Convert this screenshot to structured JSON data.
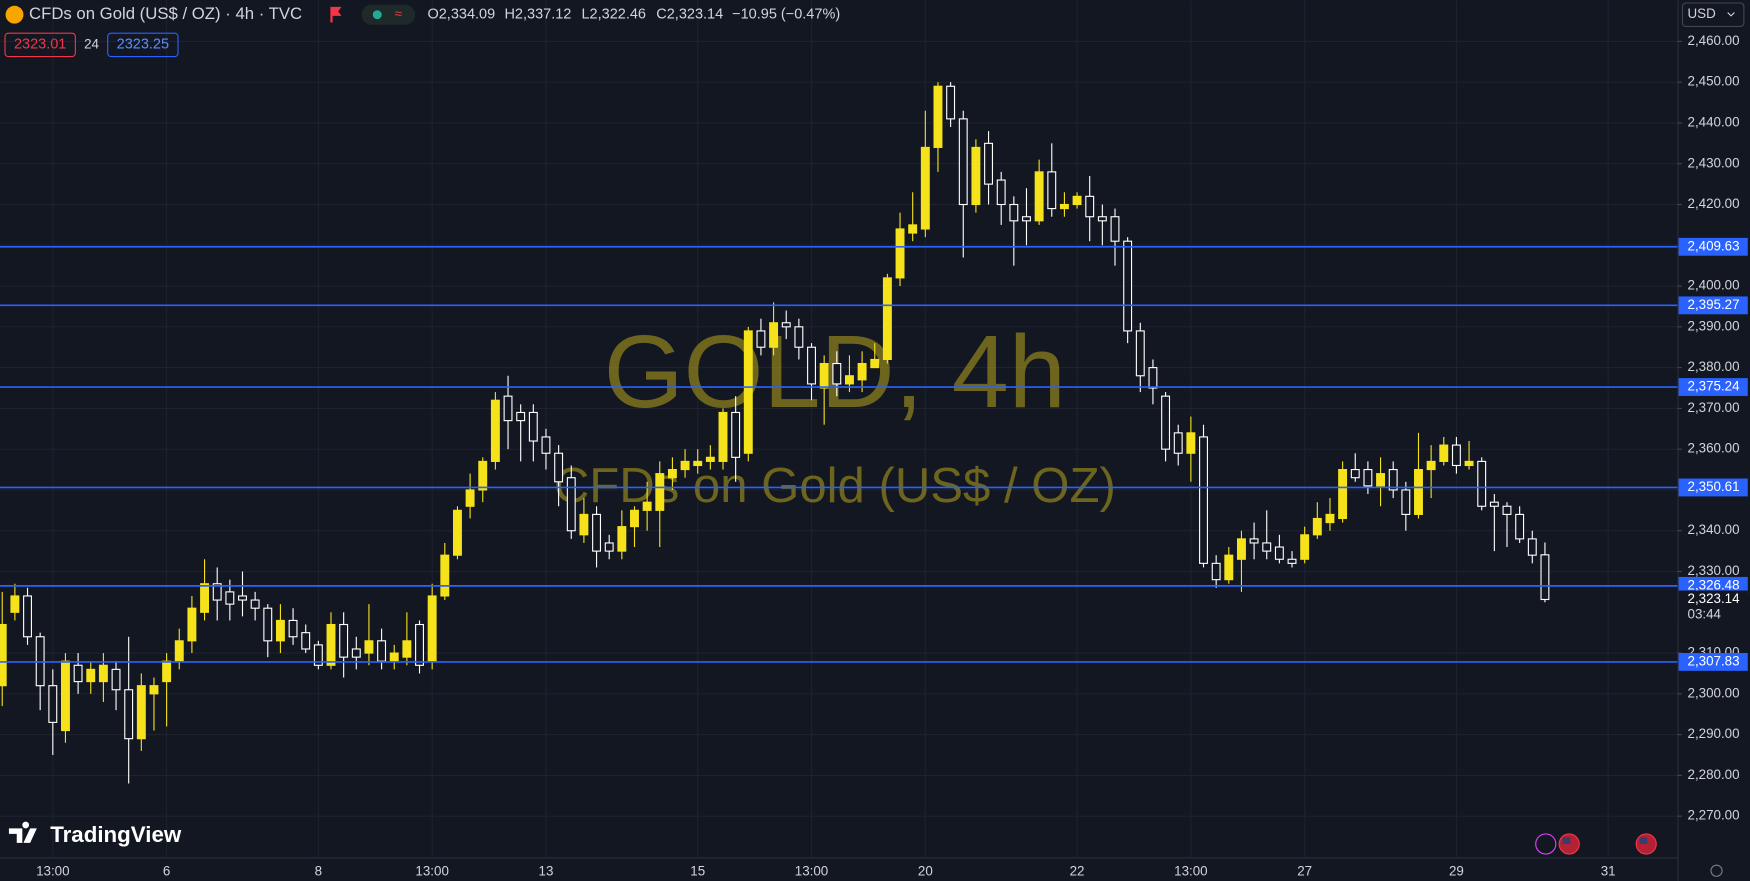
{
  "header": {
    "title": "CFDs on Gold (US$ / OZ) · 4h · TVC",
    "ohlc": [
      "O2,334.09",
      "H2,337.12",
      "L2,322.46",
      "C2,323.14"
    ],
    "change": "−10.95 (−0.47%)",
    "bid": "2323.01",
    "spread": "24",
    "ask": "2323.25"
  },
  "currency": "USD",
  "watermark": {
    "line1": "GOLD, 4h",
    "line2": "CFDs on Gold (US$ / OZ)"
  },
  "brand": "TradingView",
  "chart_data": {
    "type": "candlestick",
    "up_color": "#f5e21b",
    "down_color": "#ffffff",
    "hline_color": "#2962ff",
    "grid": true,
    "categories": [
      null,
      null,
      null,
      null,
      "13:00",
      null,
      null,
      null,
      null,
      null,
      null,
      null,
      null,
      "6",
      null,
      null,
      null,
      null,
      null,
      null,
      null,
      null,
      null,
      null,
      null,
      "8",
      null,
      null,
      null,
      null,
      null,
      null,
      null,
      null,
      "13:00",
      null,
      null,
      null,
      null,
      null,
      null,
      null,
      null,
      "13",
      null,
      null,
      null,
      null,
      null,
      null,
      null,
      null,
      null,
      null,
      null,
      "15",
      null,
      null,
      null,
      null,
      null,
      null,
      null,
      null,
      "13:00",
      null,
      null,
      null,
      null,
      null,
      null,
      null,
      null,
      "20",
      null,
      null,
      null,
      null,
      null,
      null,
      null,
      null,
      null,
      null,
      null,
      "22",
      null,
      null,
      null,
      null,
      null,
      null,
      null,
      null,
      "13:00",
      null,
      null,
      null,
      null,
      null,
      null,
      null,
      null,
      "27",
      null,
      null,
      null,
      null,
      null,
      null,
      null,
      null,
      null,
      null,
      null,
      "29",
      null,
      null,
      null,
      null,
      null,
      null,
      null,
      null,
      null,
      null,
      null,
      "31"
    ],
    "open": [
      2302,
      2320,
      2324,
      2314,
      2302,
      2291,
      2307,
      2303,
      2303,
      2306,
      2301,
      2289,
      2300,
      2303,
      2308,
      2313,
      2320,
      2327,
      2325,
      2324,
      2323,
      2321,
      2313,
      2318,
      2315,
      2312,
      2307,
      2317,
      2311,
      2310,
      2313,
      2308,
      2309,
      2317,
      2308,
      2324,
      2334,
      2346,
      2350,
      2357,
      2373,
      2369,
      2369,
      2363,
      2359,
      2353,
      2339,
      2344,
      2337,
      2335,
      2341,
      2345,
      2345,
      2353,
      2355,
      2356,
      2357,
      2357,
      2369,
      2359,
      2389,
      2385,
      2391,
      2390,
      2385,
      2375,
      2381,
      2376,
      2377,
      2380,
      2382,
      2402,
      2413,
      2414,
      2434,
      2449,
      2441,
      2420,
      2435,
      2426,
      2420,
      2417,
      2416,
      2428,
      2419,
      2420,
      2422,
      2417,
      2417,
      2411,
      2389,
      2380,
      2373,
      2364,
      2359,
      2363,
      2332,
      2328,
      2333,
      2338,
      2337,
      2336,
      2333,
      2333,
      2339,
      2342,
      2343,
      2355,
      2355,
      2351,
      2355,
      2350,
      2344,
      2355,
      2357,
      2361,
      2356,
      2357,
      2347,
      2346,
      2344,
      2338,
      2334.09,
      null,
      null,
      null,
      null,
      null
    ],
    "high": [
      2325,
      2327,
      2326,
      2315,
      2306,
      2310,
      2310,
      2308,
      2310,
      2308,
      2314,
      2305,
      2304,
      2310,
      2316,
      2324,
      2333,
      2331,
      2328,
      2330,
      2325,
      2322,
      2322,
      2321,
      2317,
      2313,
      2320,
      2320,
      2314,
      2322,
      2316,
      2312,
      2320,
      2318,
      2327,
      2337,
      2346,
      2354,
      2358,
      2374,
      2378,
      2371,
      2371,
      2365,
      2361,
      2356,
      2348,
      2346,
      2339,
      2345,
      2346,
      2352,
      2357,
      2358,
      2360,
      2360,
      2361,
      2370,
      2373,
      2390,
      2392,
      2396,
      2394,
      2392,
      2386,
      2383,
      2384,
      2383,
      2384,
      2386,
      2403,
      2418,
      2423,
      2443,
      2450,
      2450,
      2443,
      2436,
      2438,
      2428,
      2422,
      2424,
      2431,
      2435,
      2423,
      2423,
      2427,
      2420,
      2419,
      2412,
      2391,
      2382,
      2374,
      2366,
      2368,
      2366,
      2334,
      2336,
      2340,
      2342,
      2345,
      2339,
      2335,
      2341,
      2347,
      2348,
      2357,
      2359,
      2357,
      2358,
      2357,
      2352,
      2364,
      2361,
      2363,
      2363,
      2362,
      2358,
      2349,
      2347,
      2346,
      2340,
      2337.12,
      null,
      null,
      null,
      null,
      null
    ],
    "low": [
      2297,
      2318,
      2312,
      2296,
      2285,
      2288,
      2300,
      2300,
      2298,
      2296,
      2278,
      2286,
      2291,
      2292,
      2306,
      2310,
      2318,
      2318,
      2318,
      2319,
      2318,
      2309,
      2310,
      2312,
      2310,
      2306,
      2306,
      2304,
      2306,
      2307,
      2306,
      2306,
      2307,
      2305,
      2306,
      2323,
      2333,
      2343,
      2347,
      2355,
      2360,
      2357,
      2357,
      2355,
      2346,
      2338,
      2337,
      2331,
      2333,
      2333,
      2336,
      2340,
      2336,
      2350,
      2353,
      2354,
      2355,
      2355,
      2352,
      2357,
      2383,
      2383,
      2387,
      2382,
      2372,
      2366,
      2373,
      2374,
      2374,
      2380,
      2381,
      2400,
      2411,
      2412,
      2428,
      2439,
      2407,
      2418,
      2420,
      2415,
      2405,
      2410,
      2415,
      2417,
      2417,
      2419,
      2411,
      2410,
      2405,
      2386,
      2374,
      2371,
      2357,
      2356,
      2352,
      2331,
      2326,
      2327,
      2325,
      2333,
      2333,
      2332,
      2331,
      2332,
      2338,
      2340,
      2342,
      2352,
      2349,
      2346,
      2348,
      2340,
      2343,
      2348,
      2356,
      2354,
      2355,
      2345,
      2335,
      2336,
      2337,
      2332,
      2322.46,
      null,
      null,
      null,
      null,
      null
    ],
    "close": [
      2317,
      2324,
      2314,
      2302,
      2293,
      2308,
      2303,
      2306,
      2307,
      2301,
      2289,
      2302,
      2302,
      2308,
      2313,
      2321,
      2327,
      2323,
      2322,
      2323,
      2321,
      2313,
      2318,
      2314,
      2311,
      2307,
      2317,
      2309,
      2309,
      2313,
      2308,
      2310,
      2313,
      2307,
      2324,
      2334,
      2345,
      2350,
      2357,
      2372,
      2367,
      2367,
      2362,
      2359,
      2352,
      2340,
      2344,
      2335,
      2335,
      2341,
      2345,
      2347,
      2354,
      2355,
      2357,
      2357,
      2358,
      2369,
      2358,
      2389,
      2385,
      2391,
      2390,
      2385,
      2376,
      2381,
      2376,
      2378,
      2381,
      2382,
      2402,
      2414,
      2415,
      2434,
      2449,
      2441,
      2420,
      2434,
      2425,
      2420,
      2416,
      2416,
      2428,
      2419,
      2420,
      2422,
      2417,
      2416,
      2411,
      2389,
      2378,
      2375,
      2360,
      2359,
      2364,
      2332,
      2328,
      2334,
      2338,
      2337,
      2335,
      2333,
      2332,
      2339,
      2343,
      2344,
      2355,
      2353,
      2351,
      2354,
      2350,
      2344,
      2355,
      2357,
      2361,
      2356,
      2357,
      2346,
      2346,
      2344,
      2338,
      2334,
      2323.14,
      null,
      null,
      null,
      null,
      null
    ],
    "hlines": [
      {
        "value": 2409.63,
        "label": "2,409.63"
      },
      {
        "value": 2395.27,
        "label": "2,395.27"
      },
      {
        "value": 2375.24,
        "label": "2,375.24"
      },
      {
        "value": 2350.61,
        "label": "2,350.61"
      },
      {
        "value": 2326.48,
        "label": "2,326.48"
      },
      {
        "value": 2307.83,
        "label": "2,307.83"
      }
    ],
    "last_price": {
      "value": 2323.14,
      "label": "2,323.14"
    },
    "countdown": "03:44",
    "ylim": [
      2259.9,
      2470.1
    ],
    "yticks": [
      {
        "value": 2270,
        "label": "2,270.00"
      },
      {
        "value": 2280,
        "label": "2,280.00"
      },
      {
        "value": 2290,
        "label": "2,290.00"
      },
      {
        "value": 2300,
        "label": "2,300.00"
      },
      {
        "value": 2310,
        "label": "2,310.00"
      },
      {
        "value": 2330,
        "label": "2,330.00"
      },
      {
        "value": 2340,
        "label": "2,340.00"
      },
      {
        "value": 2350,
        "label": "2,350.00"
      },
      {
        "value": 2360,
        "label": "2,360.00"
      },
      {
        "value": 2370,
        "label": "2,370.00"
      },
      {
        "value": 2380,
        "label": "2,380.00"
      },
      {
        "value": 2390,
        "label": "2,390.00"
      },
      {
        "value": 2400,
        "label": "2,400.00"
      },
      {
        "value": 2410,
        "label": "2,410.00"
      },
      {
        "value": 2420,
        "label": "2,420.00"
      },
      {
        "value": 2430,
        "label": "2,430.00"
      },
      {
        "value": 2440,
        "label": "2,440.00"
      },
      {
        "value": 2450,
        "label": "2,450.00"
      },
      {
        "value": 2460,
        "label": "2,460.00"
      }
    ]
  }
}
